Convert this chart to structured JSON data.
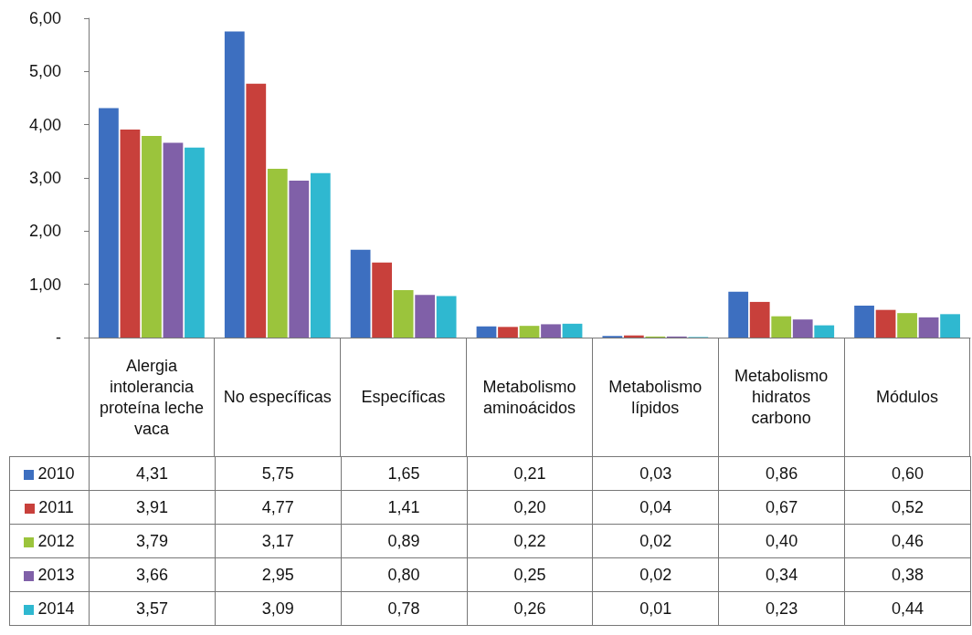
{
  "chart_data": {
    "type": "bar",
    "categories": [
      "Alergia intolerancia proteína leche vaca",
      "No específicas",
      "Específicas",
      "Metabolismo aminoácidos",
      "Metabolismo lípidos",
      "Metabolismo hidratos carbono",
      "Módulos"
    ],
    "series": [
      {
        "name": "2010",
        "color": "#3d6fc0",
        "values": [
          4.31,
          5.75,
          1.65,
          0.21,
          0.03,
          0.86,
          0.6
        ],
        "value_labels": [
          "4,31",
          "5,75",
          "1,65",
          "0,21",
          "0,03",
          "0,86",
          "0,60"
        ]
      },
      {
        "name": "2011",
        "color": "#c8403b",
        "values": [
          3.91,
          4.77,
          1.41,
          0.2,
          0.04,
          0.67,
          0.52
        ],
        "value_labels": [
          "3,91",
          "4,77",
          "1,41",
          "0,20",
          "0,04",
          "0,67",
          "0,52"
        ]
      },
      {
        "name": "2012",
        "color": "#9bc43c",
        "values": [
          3.79,
          3.17,
          0.89,
          0.22,
          0.02,
          0.4,
          0.46
        ],
        "value_labels": [
          "3,79",
          "3,17",
          "0,89",
          "0,22",
          "0,02",
          "0,40",
          "0,46"
        ]
      },
      {
        "name": "2013",
        "color": "#8060a8",
        "values": [
          3.66,
          2.95,
          0.8,
          0.25,
          0.02,
          0.34,
          0.38
        ],
        "value_labels": [
          "3,66",
          "2,95",
          "0,80",
          "0,25",
          "0,02",
          "0,34",
          "0,38"
        ]
      },
      {
        "name": "2014",
        "color": "#2fb8d0",
        "values": [
          3.57,
          3.09,
          0.78,
          0.26,
          0.01,
          0.23,
          0.44
        ],
        "value_labels": [
          "3,57",
          "3,09",
          "0,78",
          "0,26",
          "0,01",
          "0,23",
          "0,44"
        ]
      }
    ],
    "ylim": [
      0,
      6
    ],
    "yticks": [
      {
        "value": 0,
        "label": "-"
      },
      {
        "value": 1,
        "label": "1,00"
      },
      {
        "value": 2,
        "label": "2,00"
      },
      {
        "value": 3,
        "label": "3,00"
      },
      {
        "value": 4,
        "label": "4,00"
      },
      {
        "value": 5,
        "label": "5,00"
      },
      {
        "value": 6,
        "label": "6,00"
      }
    ],
    "grid": false,
    "legend": "bottom left"
  }
}
